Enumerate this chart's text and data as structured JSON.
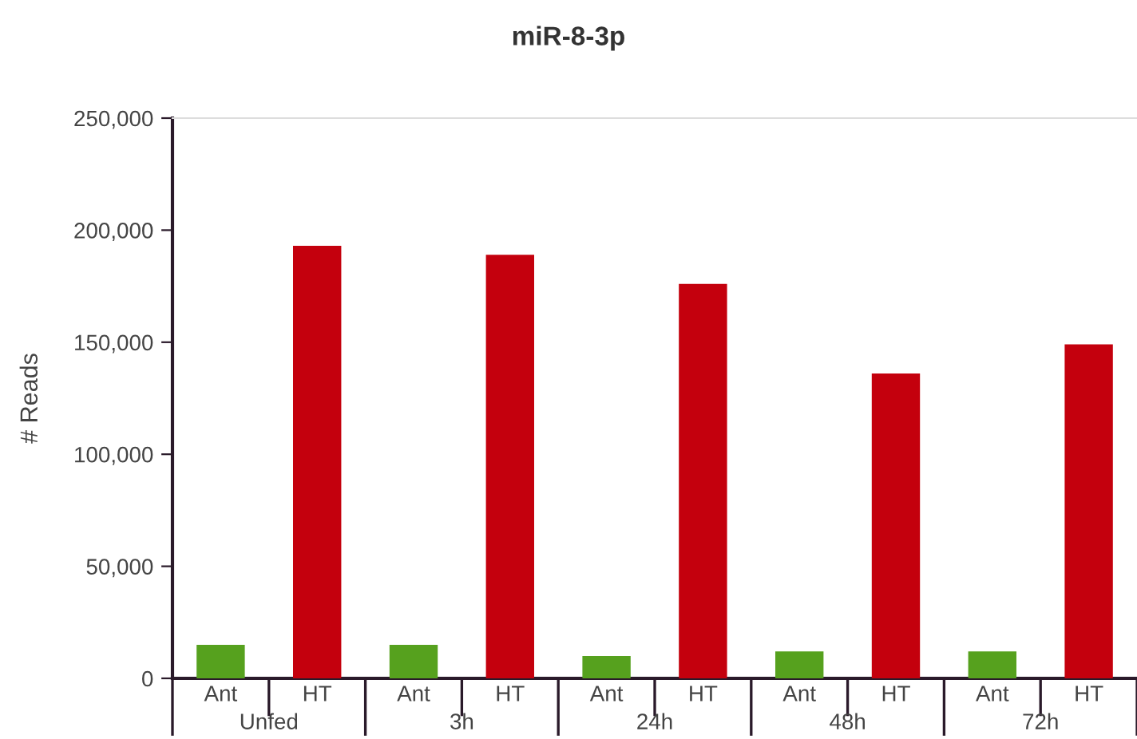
{
  "chart_data": {
    "type": "bar",
    "title": "miR-8-3p",
    "ylabel": "# Reads",
    "categories": [
      "Unfed",
      "3h",
      "24h",
      "48h",
      "72h"
    ],
    "series": [
      {
        "name": "Ant",
        "color": "#56a11e",
        "values": [
          15000,
          15000,
          10000,
          12000,
          12000
        ]
      },
      {
        "name": "HT",
        "color": "#c4000d",
        "values": [
          193000,
          189000,
          176000,
          136000,
          149000
        ]
      }
    ],
    "ylim": [
      0,
      250000
    ],
    "yticks": [
      {
        "value": 0,
        "label": "0"
      },
      {
        "value": 50000,
        "label": "50,000"
      },
      {
        "value": 100000,
        "label": "100,000"
      },
      {
        "value": 150000,
        "label": "150,000"
      },
      {
        "value": 200000,
        "label": "200,000"
      },
      {
        "value": 250000,
        "label": "250,000"
      }
    ],
    "grid": false,
    "legend": false
  }
}
